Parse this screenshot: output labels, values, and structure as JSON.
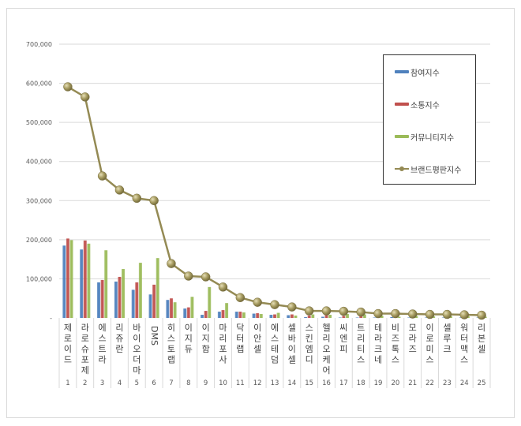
{
  "chart_data": {
    "type": "bar+line",
    "title": "",
    "xlabel": "",
    "ylabel": "",
    "ylim": [
      0,
      700000
    ],
    "yticks": [
      "-",
      "100,000",
      "200,000",
      "300,000",
      "400,000",
      "500,000",
      "600,000",
      "700,000"
    ],
    "grid": true,
    "legend_position": "right-top-inside",
    "categories": [
      "제로이드",
      "라로슈포제",
      "에스트라",
      "리쥬란",
      "바이오더마",
      "DMS",
      "히스토랩",
      "이지듀",
      "이지함",
      "마리포사",
      "닥터랩",
      "이안셀",
      "에스테덤",
      "셀바이셀",
      "스킨엠디",
      "헬리오케어",
      "씨엔피",
      "트리티스",
      "테라크네",
      "비즈톡스",
      "모라즈",
      "이로미스",
      "셀루크",
      "워터맥스",
      "리본셀"
    ],
    "ranks": [
      "1",
      "2",
      "3",
      "4",
      "5",
      "6",
      "7",
      "8",
      "9",
      "10",
      "11",
      "12",
      "13",
      "14",
      "15",
      "16",
      "17",
      "18",
      "19",
      "20",
      "21",
      "22",
      "23",
      "24",
      "25"
    ],
    "series": [
      {
        "name": "참여지수",
        "type": "bar",
        "color": "#4f81bd",
        "values": [
          185000,
          175000,
          91000,
          93000,
          72000,
          60000,
          46000,
          24000,
          8000,
          16000,
          16000,
          11000,
          8000,
          7000,
          2000,
          3000,
          1000,
          1000,
          1000,
          2000,
          1000,
          1000,
          1000,
          1000,
          1000
        ]
      },
      {
        "name": "소통지수",
        "type": "bar",
        "color": "#c0504d",
        "values": [
          203000,
          198000,
          97000,
          105000,
          91000,
          85000,
          50000,
          27000,
          18000,
          20000,
          16000,
          12000,
          9000,
          9000,
          6000,
          7000,
          5000,
          4000,
          3000,
          6000,
          3000,
          3000,
          3000,
          2000,
          2000
        ]
      },
      {
        "name": "커뮤니티지수",
        "type": "bar",
        "color": "#9bbb59",
        "values": [
          199000,
          190000,
          173000,
          125000,
          141000,
          153000,
          40000,
          54000,
          79000,
          38000,
          14000,
          10000,
          13000,
          6000,
          9000,
          8000,
          10000,
          9000,
          6000,
          3000,
          5000,
          4000,
          4000,
          4000,
          3000
        ]
      },
      {
        "name": "브랜드평판지수",
        "type": "line",
        "color": "#948a54",
        "values": [
          591000,
          565000,
          363000,
          327000,
          306000,
          300000,
          139000,
          107000,
          105000,
          79000,
          52000,
          40000,
          34000,
          28000,
          18000,
          18000,
          17000,
          15000,
          11000,
          11000,
          10000,
          9000,
          9000,
          8000,
          7000
        ]
      }
    ]
  },
  "legend": {
    "items": [
      "참여지수",
      "소통지수",
      "커뮤니티지수",
      "브랜드평판지수"
    ]
  }
}
